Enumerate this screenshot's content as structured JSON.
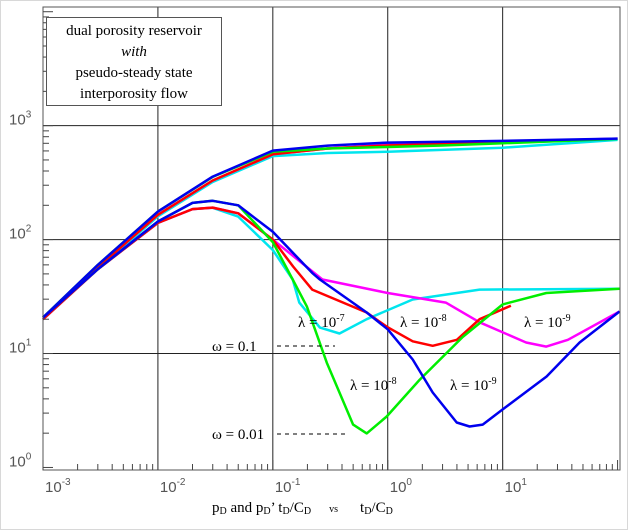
{
  "chart_data": {
    "type": "line",
    "title": "",
    "x_scale": "log",
    "y_scale": "log",
    "xlim": [
      0.001,
      105
    ],
    "ylim": [
      0.95,
      11000
    ],
    "grid": true,
    "x_ticks": [
      {
        "base": "10",
        "exp": "-3",
        "value": 0.001
      },
      {
        "base": "10",
        "exp": "-2",
        "value": 0.01
      },
      {
        "base": "10",
        "exp": "-1",
        "value": 0.1
      },
      {
        "base": "10",
        "exp": "0",
        "value": 1
      },
      {
        "base": "10",
        "exp": "1",
        "value": 10
      }
    ],
    "y_ticks": [
      {
        "base": "10",
        "exp": "0",
        "value": 1
      },
      {
        "base": "10",
        "exp": "1",
        "value": 10
      },
      {
        "base": "10",
        "exp": "2",
        "value": 100
      },
      {
        "base": "10",
        "exp": "3",
        "value": 1000
      }
    ],
    "xlabel": {
      "left": "p",
      "left_sub": "D",
      "mid1": " and p",
      "mid1_sub": "D",
      "mid2": "’ t",
      "mid2_sub": "D",
      "mid3": "/C",
      "mid3_sub": "D",
      "vs": "vs",
      "right": "t",
      "right_sub": "D",
      "right2": "/C",
      "right2_sub": "D"
    },
    "legend_box": {
      "line1": "dual porosity reservoir",
      "line2": "with",
      "line3": "pseudo-steady state",
      "line4": "interporosity flow"
    },
    "annotations": [
      {
        "text": "λ = 10",
        "sup": "-7"
      },
      {
        "text": "λ = 10",
        "sup": "-8"
      },
      {
        "text": "λ = 10",
        "sup": "-9"
      },
      {
        "text": "λ = 10",
        "sup": "-8"
      },
      {
        "text": "λ = 10",
        "sup": "-9"
      },
      {
        "text": "ω = 0.1"
      },
      {
        "text": "ω = 0.01"
      }
    ],
    "series": [
      {
        "color": "#00e5ee",
        "points": [
          [
            0.001,
            20
          ],
          [
            0.003,
            55
          ],
          [
            0.01,
            160
          ],
          [
            0.03,
            320
          ],
          [
            0.1,
            540
          ],
          [
            0.3,
            575
          ],
          [
            1,
            590
          ],
          [
            10,
            640
          ],
          [
            100,
            750
          ]
        ]
      },
      {
        "color": "#ff00ff",
        "points": [
          [
            0.001,
            20
          ],
          [
            0.003,
            57
          ],
          [
            0.01,
            165
          ],
          [
            0.03,
            330
          ],
          [
            0.1,
            560
          ],
          [
            0.3,
            630
          ],
          [
            1,
            680
          ],
          [
            10,
            720
          ],
          [
            100,
            770
          ]
        ]
      },
      {
        "color": "#ff0000",
        "points": [
          [
            0.001,
            20
          ],
          [
            0.003,
            57
          ],
          [
            0.01,
            165
          ],
          [
            0.03,
            330
          ],
          [
            0.1,
            560
          ],
          [
            0.3,
            630
          ],
          [
            1,
            670
          ],
          [
            3,
            690
          ],
          [
            12,
            720
          ]
        ]
      },
      {
        "color": "#00ee00",
        "points": [
          [
            0.001,
            20.7
          ],
          [
            0.003,
            60
          ],
          [
            0.01,
            176
          ],
          [
            0.03,
            355
          ],
          [
            0.1,
            590
          ],
          [
            0.3,
            630
          ],
          [
            1,
            650
          ],
          [
            3,
            670
          ],
          [
            10,
            700
          ],
          [
            100,
            765
          ]
        ]
      },
      {
        "color": "#0000ee",
        "points": [
          [
            0.001,
            20.7
          ],
          [
            0.003,
            60
          ],
          [
            0.01,
            176
          ],
          [
            0.03,
            357
          ],
          [
            0.05,
            446
          ],
          [
            0.1,
            604
          ],
          [
            0.3,
            668
          ],
          [
            1,
            710
          ],
          [
            10,
            735
          ],
          [
            100,
            770
          ]
        ]
      },
      {
        "color": "#00e5ee",
        "points": [
          [
            0.001,
            20
          ],
          [
            0.003,
            55
          ],
          [
            0.01,
            140
          ],
          [
            0.02,
            185
          ],
          [
            0.03,
            190
          ],
          [
            0.05,
            159
          ],
          [
            0.1,
            81
          ],
          [
            0.149,
            44.6
          ],
          [
            0.17,
            28
          ],
          [
            0.257,
            16.9
          ],
          [
            0.38,
            15
          ],
          [
            0.656,
            20
          ],
          [
            1.65,
            29.8
          ],
          [
            6.3,
            36.4
          ],
          [
            104,
            37
          ]
        ]
      },
      {
        "color": "#ff00ff",
        "points": [
          [
            0.001,
            20
          ],
          [
            0.003,
            55
          ],
          [
            0.01,
            140
          ],
          [
            0.02,
            185
          ],
          [
            0.03,
            191
          ],
          [
            0.05,
            170
          ],
          [
            0.1,
            100
          ],
          [
            0.27,
            44.6
          ],
          [
            1,
            34
          ],
          [
            3.2,
            28
          ],
          [
            6.3,
            18.8
          ],
          [
            16,
            12.5
          ],
          [
            24,
            11.5
          ],
          [
            37,
            13.2
          ],
          [
            104,
            23.4
          ]
        ]
      },
      {
        "color": "#ff0000",
        "points": [
          [
            0.001,
            20
          ],
          [
            0.003,
            55
          ],
          [
            0.01,
            140
          ],
          [
            0.02,
            185
          ],
          [
            0.03,
            191
          ],
          [
            0.05,
            170
          ],
          [
            0.1,
            100
          ],
          [
            0.15,
            58
          ],
          [
            0.22,
            36.4
          ],
          [
            0.656,
            22.9
          ],
          [
            0.98,
            17.2
          ],
          [
            1.65,
            12.8
          ],
          [
            2.46,
            11.7
          ],
          [
            4,
            13.2
          ],
          [
            6.3,
            20
          ],
          [
            11.8,
            26.3
          ]
        ]
      },
      {
        "color": "#00ee00",
        "points": [
          [
            0.001,
            20.7
          ],
          [
            0.003,
            55
          ],
          [
            0.01,
            144
          ],
          [
            0.02,
            210
          ],
          [
            0.03,
            219
          ],
          [
            0.05,
            200
          ],
          [
            0.1,
            95
          ],
          [
            0.149,
            44.6
          ],
          [
            0.198,
            25.8
          ],
          [
            0.295,
            8.3
          ],
          [
            0.5,
            2.38
          ],
          [
            0.656,
            1.99
          ],
          [
            0.98,
            2.8
          ],
          [
            1.9,
            5.9
          ],
          [
            4.5,
            14
          ],
          [
            10,
            27
          ],
          [
            24,
            34
          ],
          [
            104,
            37
          ]
        ]
      },
      {
        "color": "#0000ee",
        "points": [
          [
            0.001,
            20.7
          ],
          [
            0.003,
            55
          ],
          [
            0.01,
            144
          ],
          [
            0.02,
            210
          ],
          [
            0.03,
            219
          ],
          [
            0.05,
            200
          ],
          [
            0.1,
            117
          ],
          [
            0.22,
            51
          ],
          [
            0.257,
            44.6
          ],
          [
            0.656,
            22.9
          ],
          [
            1,
            16.3
          ],
          [
            1.65,
            8.86
          ],
          [
            2.46,
            4.55
          ],
          [
            3.98,
            2.48
          ],
          [
            5.16,
            2.29
          ],
          [
            6.7,
            2.38
          ],
          [
            10,
            3.23
          ],
          [
            24.1,
            6.28
          ],
          [
            46.7,
            12.5
          ],
          [
            104,
            23.4
          ]
        ]
      }
    ]
  }
}
